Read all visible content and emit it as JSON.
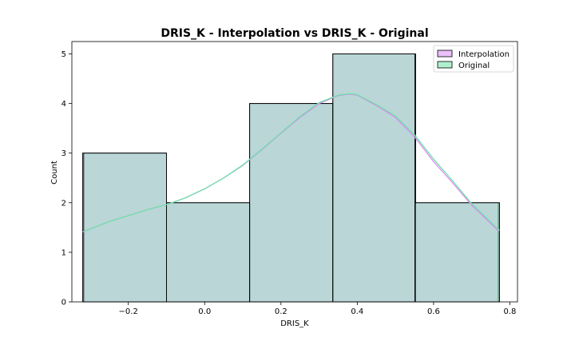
{
  "chart_data": {
    "type": "bar",
    "title": "DRIS_K - Interpolation vs DRIS_K - Original",
    "xlabel": "DRIS_K",
    "ylabel": "Count",
    "xlim": [
      -0.348,
      0.82
    ],
    "ylim": [
      0,
      5.25
    ],
    "x_ticks": [
      -0.2,
      0.0,
      0.2,
      0.4,
      0.6,
      0.8
    ],
    "x_tick_labels": [
      "−0.2",
      "0.0",
      "0.2",
      "0.4",
      "0.6",
      "0.8"
    ],
    "y_ticks": [
      0,
      1,
      2,
      3,
      4,
      5
    ],
    "y_tick_labels": [
      "0",
      "1",
      "2",
      "3",
      "4",
      "5"
    ],
    "grid": false,
    "legend_position": "top-right",
    "series": [
      {
        "name": "Interpolation",
        "color": "#da8bf2",
        "bins": [
          {
            "x0": -0.32,
            "x1": -0.1,
            "count": 3
          },
          {
            "x0": -0.1,
            "x1": 0.118,
            "count": 2
          },
          {
            "x0": 0.118,
            "x1": 0.336,
            "count": 4
          },
          {
            "x0": 0.336,
            "x1": 0.553,
            "count": 5
          },
          {
            "x0": 0.553,
            "x1": 0.77,
            "count": 2
          }
        ],
        "kde": {
          "x": [
            -0.32,
            -0.25,
            -0.2,
            -0.15,
            -0.1,
            -0.05,
            0.0,
            0.05,
            0.1,
            0.15,
            0.2,
            0.25,
            0.3,
            0.35,
            0.38,
            0.4,
            0.45,
            0.5,
            0.55,
            0.6,
            0.65,
            0.7,
            0.77
          ],
          "y": [
            1.41,
            1.62,
            1.74,
            1.86,
            1.96,
            2.1,
            2.28,
            2.5,
            2.75,
            3.07,
            3.4,
            3.72,
            4.0,
            4.16,
            4.19,
            4.17,
            3.96,
            3.72,
            3.33,
            2.83,
            2.4,
            1.95,
            1.43
          ]
        }
      },
      {
        "name": "Original",
        "color": "#6fe3a8",
        "bins": [
          {
            "x0": -0.317,
            "x1": -0.1,
            "count": 3
          },
          {
            "x0": -0.1,
            "x1": 0.118,
            "count": 2
          },
          {
            "x0": 0.118,
            "x1": 0.336,
            "count": 4
          },
          {
            "x0": 0.336,
            "x1": 0.551,
            "count": 5
          },
          {
            "x0": 0.551,
            "x1": 0.773,
            "count": 2
          }
        ],
        "kde": {
          "x": [
            -0.317,
            -0.25,
            -0.2,
            -0.15,
            -0.1,
            -0.05,
            0.0,
            0.05,
            0.1,
            0.15,
            0.2,
            0.25,
            0.3,
            0.35,
            0.38,
            0.4,
            0.45,
            0.5,
            0.55,
            0.6,
            0.65,
            0.7,
            0.773
          ],
          "y": [
            1.42,
            1.62,
            1.74,
            1.86,
            1.96,
            2.1,
            2.28,
            2.5,
            2.76,
            3.08,
            3.41,
            3.74,
            4.02,
            4.17,
            4.2,
            4.18,
            3.98,
            3.75,
            3.37,
            2.88,
            2.44,
            1.98,
            1.44
          ]
        }
      }
    ]
  }
}
